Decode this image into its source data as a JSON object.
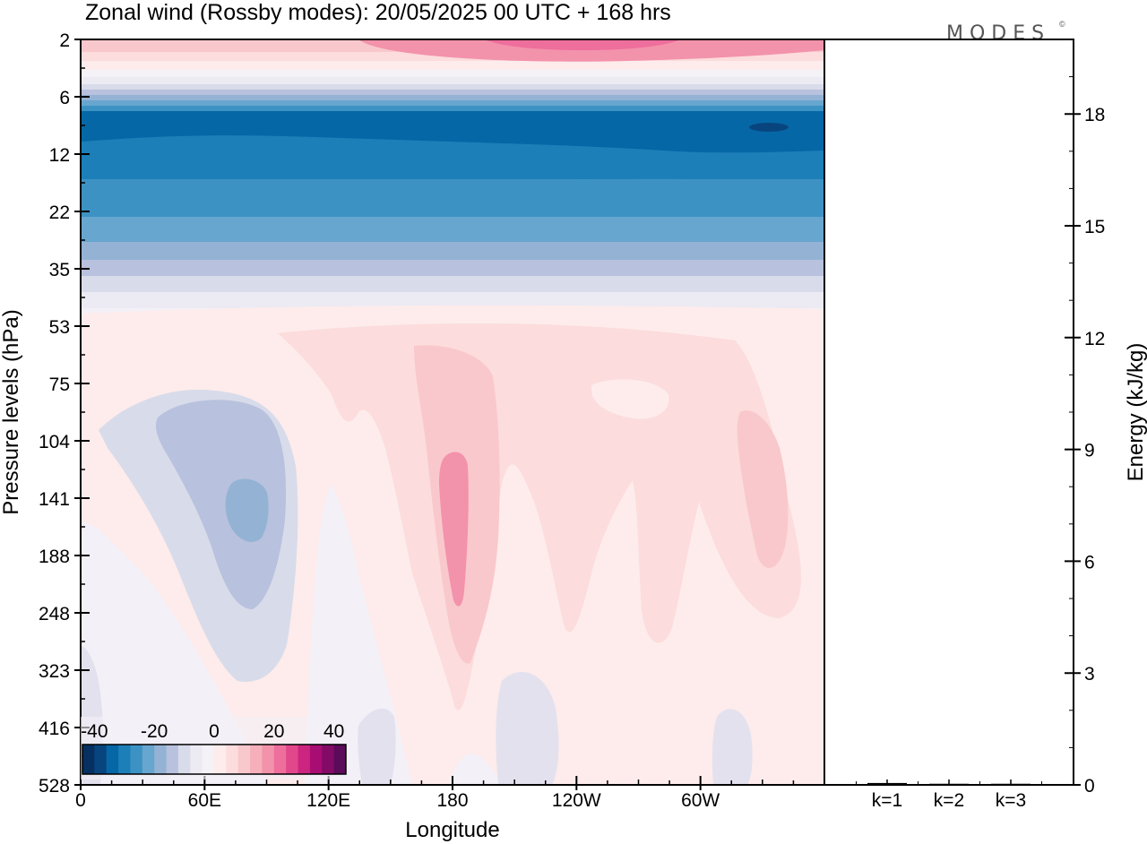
{
  "chart_data": [
    {
      "type": "heatmap",
      "title": "Zonal wind (Rossby modes):  20/05/2025  00 UTC  + 168 hrs",
      "xlabel": "Longitude",
      "ylabel": "Pressure levels (hPa)",
      "x_ticks": [
        "0",
        "60E",
        "120E",
        "180",
        "120W",
        "60W"
      ],
      "x_tick_values": [
        0,
        60,
        120,
        180,
        240,
        300
      ],
      "xlim": [
        0,
        360
      ],
      "y_ticks": [
        "2",
        "6",
        "12",
        "22",
        "35",
        "53",
        "75",
        "104",
        "141",
        "188",
        "248",
        "323",
        "416",
        "528"
      ],
      "y_scale": "level-index (top 2 hPa, bottom 528 hPa)",
      "colorbar": {
        "tick_labels": [
          "-40",
          "-20",
          "0",
          "20",
          "40"
        ],
        "tick_values": [
          -40,
          -20,
          0,
          20,
          40
        ],
        "levels": [
          -44,
          -40,
          -36,
          -32,
          -28,
          -24,
          -20,
          -16,
          -12,
          -8,
          -4,
          0,
          4,
          8,
          12,
          16,
          20,
          24,
          28,
          32,
          36,
          40,
          44
        ],
        "colors": [
          "#053061",
          "#08457f",
          "#0667a6",
          "#1d7fb8",
          "#3d92c4",
          "#67a6ce",
          "#94b3d4",
          "#b8c1dd",
          "#d8dbea",
          "#eceaf3",
          "#f5f2f7",
          "#fdeceb",
          "#fcdcdc",
          "#f9c8cc",
          "#f6b0bb",
          "#f392ab",
          "#ee6e9c",
          "#e2478c",
          "#cc2580",
          "#a80d73",
          "#830a66",
          "#5c0a5a"
        ]
      },
      "fields": [
        {
          "name": "stratospheric westerly jet",
          "level_hpa": 2,
          "lon_range": [
            90,
            270
          ],
          "value": 22
        },
        {
          "name": "easterly jet",
          "level_hpa": 10,
          "lon_range": [
            0,
            360
          ],
          "value": -28
        },
        {
          "name": "easterly jet minimum",
          "level_hpa": 10,
          "lon_range": [
            320,
            330
          ],
          "value": -38
        },
        {
          "name": "negative anomaly",
          "level_hpa": 141,
          "lon_range": [
            55,
            90
          ],
          "value": -14
        },
        {
          "name": "positive maximum",
          "level_hpa": 141,
          "lon_range": [
            175,
            190
          ],
          "value": 18
        },
        {
          "name": "positive anomaly",
          "level_hpa": 160,
          "lon_range": [
            320,
            340
          ],
          "value": 12
        }
      ]
    },
    {
      "type": "bar",
      "ylabel": "Energy (kJ/kg)",
      "categories": [
        "k=1",
        "k=2",
        "k=3"
      ],
      "values": [
        0.05,
        0.03,
        0.03
      ],
      "ylim": [
        0,
        20
      ],
      "y_ticks": [
        "0",
        "3",
        "6",
        "9",
        "12",
        "15",
        "18"
      ],
      "y_tick_values": [
        0,
        3,
        6,
        9,
        12,
        15,
        18
      ]
    }
  ],
  "logo_text": "MODES",
  "logo_mark": "©"
}
